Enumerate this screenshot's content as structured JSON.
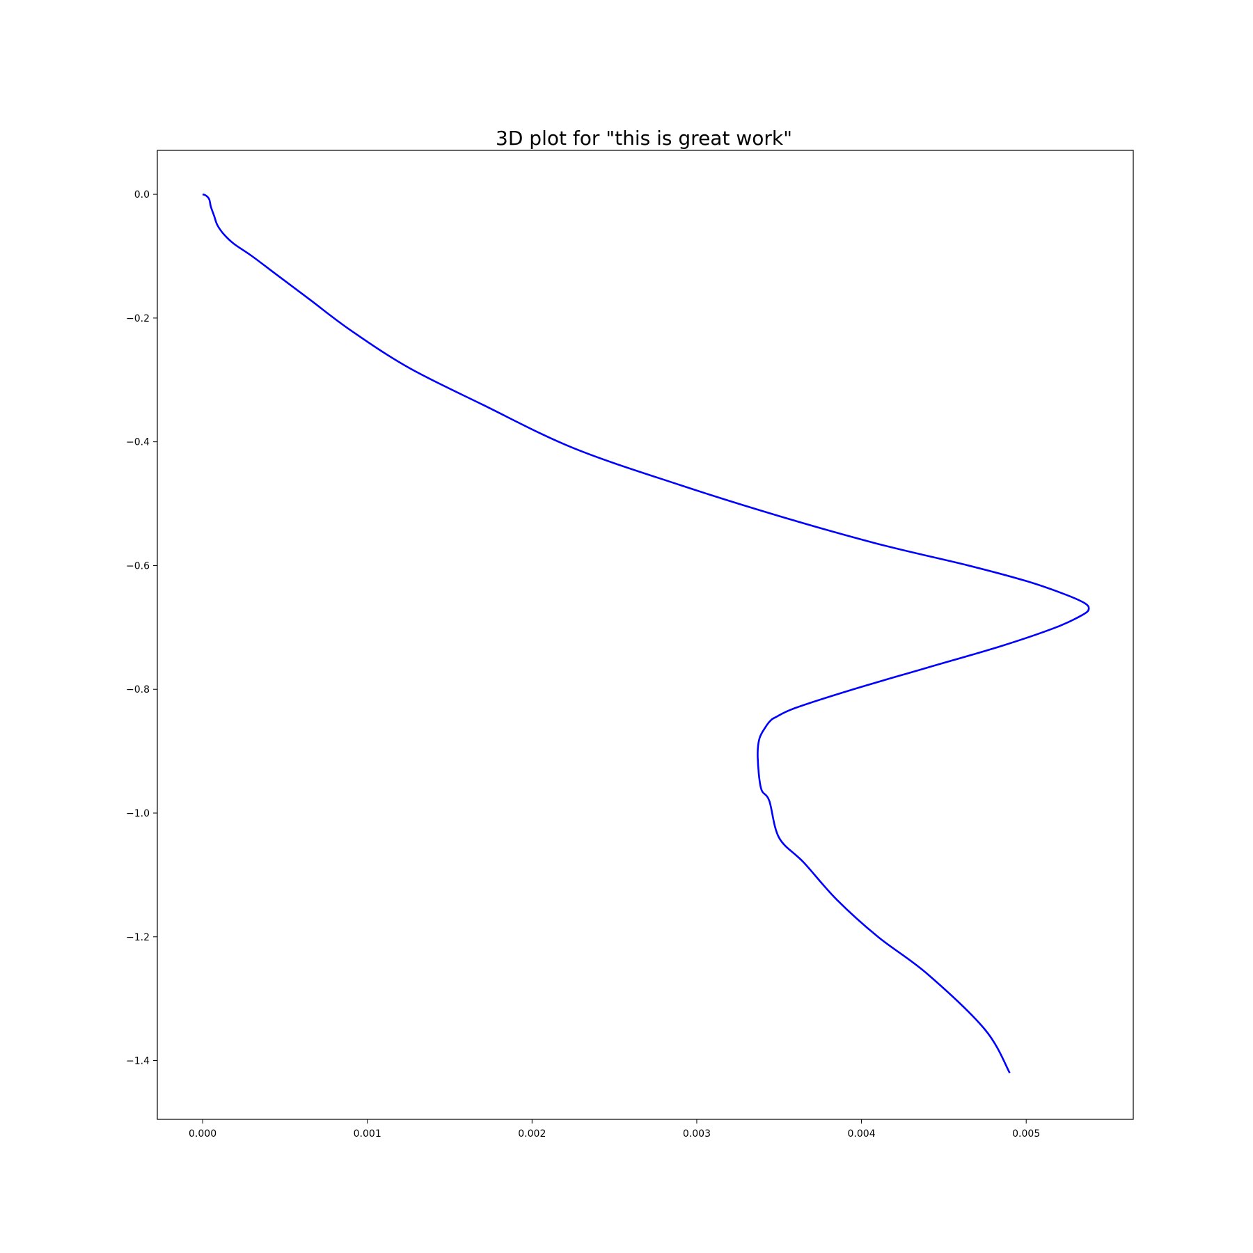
{
  "chart_data": {
    "type": "line",
    "title": "3D plot for \"this is great work\"",
    "xlabel": "",
    "ylabel": "",
    "xlim": [
      -0.000275,
      0.00565
    ],
    "ylim": [
      -1.495,
      0.071
    ],
    "grid": false,
    "legend": "none",
    "colors": {
      "line": "#0000ff",
      "frame": "#000000",
      "background": "#ffffff"
    },
    "x_ticks": [
      {
        "value": 0.0,
        "label": "0.000"
      },
      {
        "value": 0.001,
        "label": "0.001"
      },
      {
        "value": 0.002,
        "label": "0.002"
      },
      {
        "value": 0.003,
        "label": "0.003"
      },
      {
        "value": 0.004,
        "label": "0.004"
      },
      {
        "value": 0.005,
        "label": "0.005"
      }
    ],
    "y_ticks": [
      {
        "value": 0.0,
        "label": "0.0"
      },
      {
        "value": -0.2,
        "label": "−0.2"
      },
      {
        "value": -0.4,
        "label": "−0.4"
      },
      {
        "value": -0.6,
        "label": "−0.6"
      },
      {
        "value": -0.8,
        "label": "−0.8"
      },
      {
        "value": -1.0,
        "label": "−1.0"
      },
      {
        "value": -1.2,
        "label": "−1.2"
      },
      {
        "value": -1.4,
        "label": "−1.4"
      }
    ],
    "series": [
      {
        "x": [
          0.0,
          2e-05,
          4e-05,
          5e-05,
          7e-05,
          9e-05,
          0.00013,
          0.00019,
          0.0003,
          0.00045,
          0.00065,
          0.0009,
          0.00125,
          0.0017,
          0.00225,
          0.0029,
          0.0035,
          0.0041,
          0.00465,
          0.005,
          0.00522,
          0.00535,
          0.00538,
          0.00534,
          0.00518,
          0.00485,
          0.0044,
          0.00395,
          0.0036,
          0.00348,
          0.00345,
          0.00342,
          0.00338,
          0.00337,
          0.00339,
          0.00344,
          0.0035,
          0.00365,
          0.00385,
          0.0041,
          0.0044,
          0.00475,
          0.0049
        ],
        "y": [
          0.0,
          -0.002,
          -0.008,
          -0.02,
          -0.035,
          -0.05,
          -0.065,
          -0.08,
          -0.1,
          -0.13,
          -0.17,
          -0.22,
          -0.28,
          -0.34,
          -0.41,
          -0.47,
          -0.52,
          -0.565,
          -0.6,
          -0.625,
          -0.645,
          -0.66,
          -0.67,
          -0.68,
          -0.7,
          -0.73,
          -0.765,
          -0.8,
          -0.83,
          -0.845,
          -0.85,
          -0.86,
          -0.88,
          -0.91,
          -0.96,
          -0.98,
          -1.04,
          -1.08,
          -1.14,
          -1.2,
          -1.26,
          -1.35,
          -1.42
        ]
      }
    ]
  }
}
